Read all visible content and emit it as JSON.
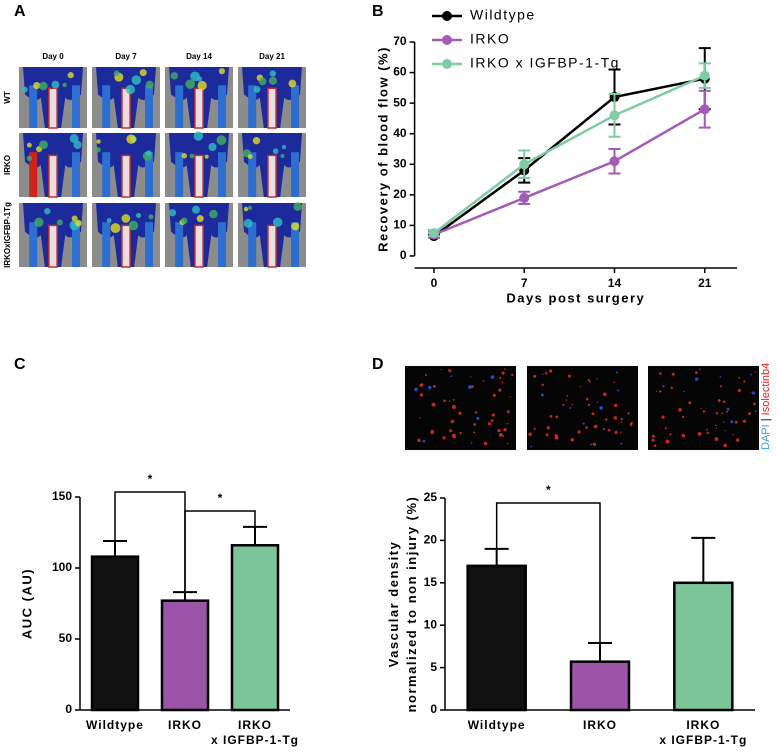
{
  "chart_data": [
    {
      "type": "image-grid",
      "panel": "A",
      "columns": [
        "Day 0",
        "Day 7",
        "Day 14",
        "Day 21"
      ],
      "rows": [
        "WT",
        "IRKO",
        "IRKOxIGFBP-1Tg"
      ]
    },
    {
      "type": "line",
      "panel": "B",
      "xlabel": "Days post surgery",
      "ylabel": "Recovery of blood flow (%)",
      "x": [
        0,
        7,
        14,
        21
      ],
      "xlim": [
        -1.5,
        23.5
      ],
      "xticks": [
        0,
        7,
        14,
        21
      ],
      "ylim": [
        0,
        70
      ],
      "yticks": [
        0,
        10,
        20,
        30,
        40,
        50,
        60,
        70
      ],
      "series": [
        {
          "name": "Wildtype",
          "color": "#000000",
          "values": [
            6.5,
            28,
            52,
            58
          ],
          "errors": [
            0.5,
            4,
            9,
            10
          ]
        },
        {
          "name": "IRKO",
          "color": "#a45bb5",
          "values": [
            7,
            19,
            31,
            48
          ],
          "errors": [
            1,
            2,
            4,
            6
          ]
        },
        {
          "name": "IRKO x IGFBP-1-Tg",
          "color": "#7fcba4",
          "values": [
            7.5,
            30,
            46,
            59
          ],
          "errors": [
            1,
            4.5,
            7,
            4
          ]
        }
      ]
    },
    {
      "type": "bar",
      "panel": "C",
      "ylabel": "AUC (AU)",
      "categories": [
        "Wildtype",
        "IRKO",
        "IRKO\nx IGFBP-1-Tg"
      ],
      "values": [
        108,
        77,
        116
      ],
      "errors": [
        11,
        6,
        13
      ],
      "colors": [
        "#111111",
        "#9b55a8",
        "#7cc59a"
      ],
      "ylim": [
        0,
        150
      ],
      "yticks": [
        0,
        50,
        100,
        150
      ],
      "significance": [
        "*",
        "*"
      ]
    },
    {
      "type": "bar",
      "panel": "D",
      "ylabel": "Vascular density\nnormalized to non injury (%)",
      "image_labels": [
        "DAPI",
        "Isolectinb4"
      ],
      "categories": [
        "Wildtype",
        "IRKO",
        "IRKO\nx IGFBP-1-Tg"
      ],
      "values": [
        17,
        5.7,
        15
      ],
      "errors": [
        2,
        2.2,
        5.3
      ],
      "colors": [
        "#111111",
        "#9b55a8",
        "#7cc59a"
      ],
      "ylim": [
        0,
        25
      ],
      "yticks": [
        0,
        5,
        10,
        15,
        20,
        25
      ],
      "significance": [
        "*"
      ]
    }
  ]
}
